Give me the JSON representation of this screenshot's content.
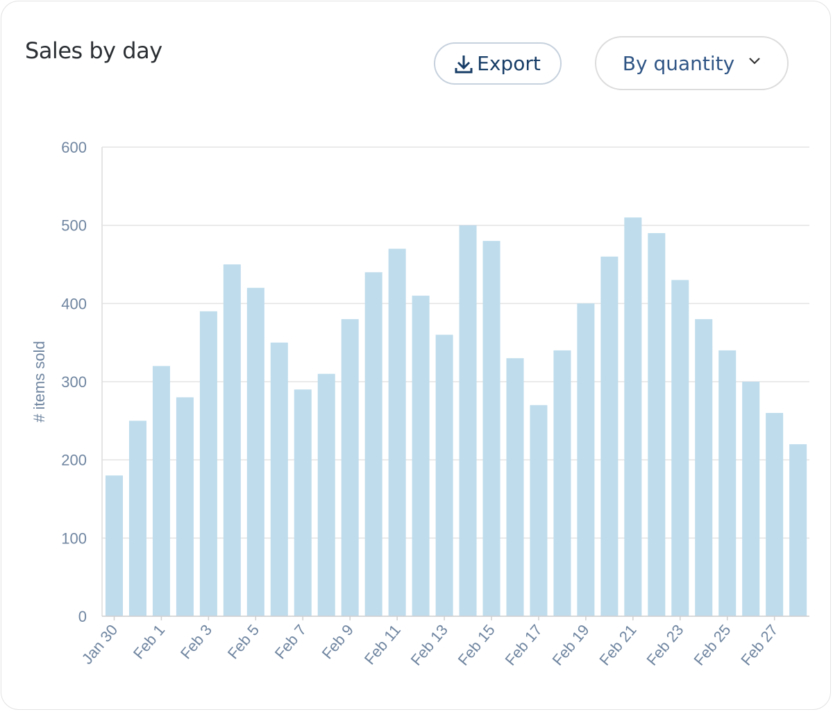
{
  "title": "Sales by day",
  "export_button": {
    "label": "Export",
    "icon": "download-icon"
  },
  "quantity_select": {
    "label": "By quantity",
    "icon": "chevron-down-icon"
  },
  "chart_data": {
    "type": "bar",
    "title": "Sales by day",
    "xlabel": "",
    "ylabel": "# items sold",
    "ylim": [
      0,
      600
    ],
    "yticks": [
      0,
      100,
      200,
      300,
      400,
      500,
      600
    ],
    "grid": true,
    "bar_color": "#bedcec",
    "categories": [
      "Jan 30",
      "Jan 31",
      "Feb 1",
      "Feb 2",
      "Feb 3",
      "Feb 4",
      "Feb 5",
      "Feb 6",
      "Feb 7",
      "Feb 8",
      "Feb 9",
      "Feb 10",
      "Feb 11",
      "Feb 12",
      "Feb 13",
      "Feb 14",
      "Feb 15",
      "Feb 16",
      "Feb 17",
      "Feb 18",
      "Feb 19",
      "Feb 20",
      "Feb 21",
      "Feb 22",
      "Feb 23",
      "Feb 24",
      "Feb 25",
      "Feb 26",
      "Feb 27",
      "Feb 28"
    ],
    "tick_labels": [
      "Jan 30",
      "Feb 1",
      "Feb 3",
      "Feb 5",
      "Feb 7",
      "Feb 9",
      "Feb 11",
      "Feb 13",
      "Feb 15",
      "Feb 17",
      "Feb 19",
      "Feb 21",
      "Feb 23",
      "Feb 25",
      "Feb 27"
    ],
    "values": [
      180,
      250,
      320,
      280,
      390,
      450,
      420,
      350,
      290,
      310,
      380,
      440,
      470,
      410,
      360,
      500,
      480,
      330,
      270,
      340,
      400,
      460,
      510,
      490,
      430,
      380,
      340,
      300,
      260,
      220
    ]
  }
}
